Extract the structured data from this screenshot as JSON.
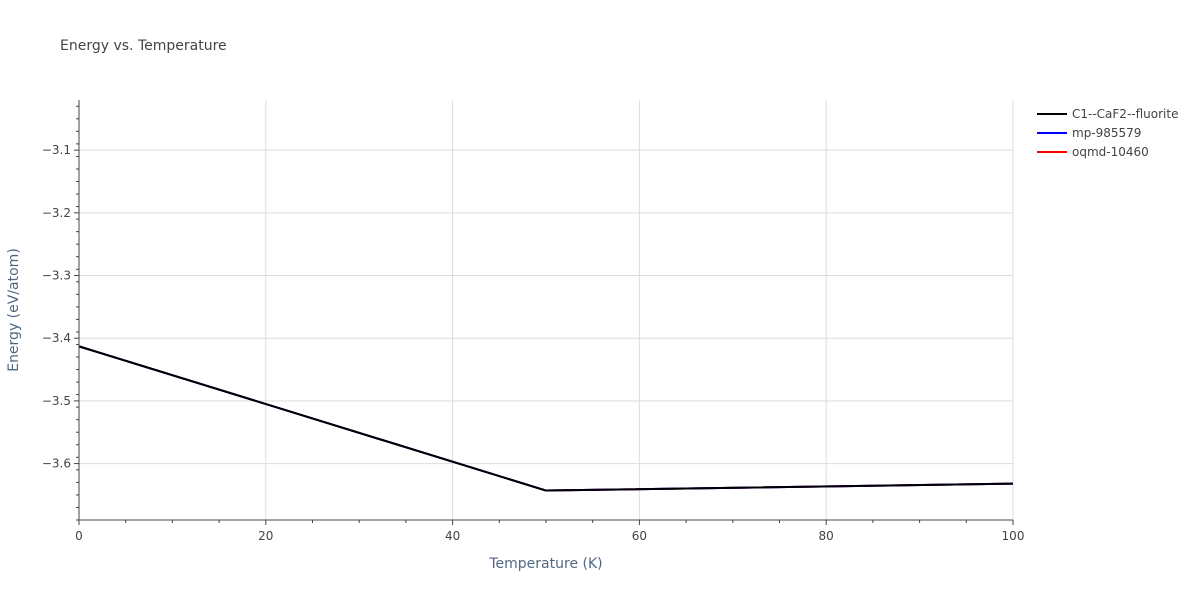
{
  "chart_data": {
    "type": "line",
    "title": "Energy vs. Temperature",
    "xlabel": "Temperature (K)",
    "ylabel": "Energy (eV/atom)",
    "xlim": [
      0,
      100
    ],
    "ylim": [
      -3.69,
      -3.02
    ],
    "x_ticks": [
      0,
      20,
      40,
      60,
      80,
      100
    ],
    "x_tick_labels": [
      "0",
      "20",
      "40",
      "60",
      "80",
      "100"
    ],
    "y_ticks": [
      -3.6,
      -3.5,
      -3.4,
      -3.3,
      -3.2,
      -3.1
    ],
    "y_tick_labels": [
      "−3.6",
      "−3.5",
      "−3.4",
      "−3.3",
      "−3.2",
      "−3.1"
    ],
    "grid": true,
    "legend_position": "top-right",
    "series": [
      {
        "name": "C1--CaF2--fluorite",
        "color": "#000000",
        "x": [
          0,
          50,
          100
        ],
        "y": [
          -3.413,
          -3.643,
          -3.632
        ]
      },
      {
        "name": "mp-985579",
        "color": "#0000ff",
        "x": [
          0,
          50,
          100
        ],
        "y": [
          -3.413,
          -3.643,
          -3.632
        ]
      },
      {
        "name": "oqmd-10460",
        "color": "#ff0000",
        "x": [
          0,
          50,
          100
        ],
        "y": [
          -3.413,
          -3.643,
          -3.632
        ]
      }
    ],
    "draw_order": [
      2,
      1,
      0
    ]
  }
}
